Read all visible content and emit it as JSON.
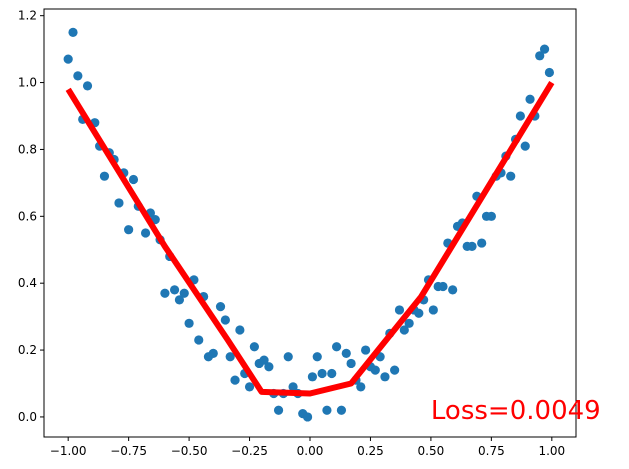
{
  "chart_data": {
    "type": "scatter",
    "title": "",
    "xlabel": "",
    "ylabel": "",
    "xlim": [
      -1.1,
      1.1
    ],
    "ylim": [
      -0.06,
      1.22
    ],
    "grid": false,
    "xticks": [
      -1.0,
      -0.75,
      -0.5,
      -0.25,
      0.0,
      0.25,
      0.5,
      0.75,
      1.0
    ],
    "xtick_labels": [
      "−1.00",
      "−0.75",
      "−0.50",
      "−0.25",
      "0.00",
      "0.25",
      "0.50",
      "0.75",
      "1.00"
    ],
    "yticks": [
      0.0,
      0.2,
      0.4,
      0.6,
      0.8,
      1.0,
      1.2
    ],
    "ytick_labels": [
      "0.0",
      "0.2",
      "0.4",
      "0.6",
      "0.8",
      "1.0",
      "1.2"
    ],
    "series": [
      {
        "kind": "scatter",
        "color": "#1f77b4",
        "points": [
          [
            -1.0,
            1.07
          ],
          [
            -0.98,
            1.15
          ],
          [
            -0.96,
            1.02
          ],
          [
            -0.94,
            0.89
          ],
          [
            -0.92,
            0.99
          ],
          [
            -0.89,
            0.88
          ],
          [
            -0.87,
            0.81
          ],
          [
            -0.85,
            0.72
          ],
          [
            -0.83,
            0.79
          ],
          [
            -0.81,
            0.77
          ],
          [
            -0.79,
            0.64
          ],
          [
            -0.77,
            0.73
          ],
          [
            -0.75,
            0.56
          ],
          [
            -0.73,
            0.71
          ],
          [
            -0.71,
            0.63
          ],
          [
            -0.68,
            0.55
          ],
          [
            -0.66,
            0.61
          ],
          [
            -0.64,
            0.59
          ],
          [
            -0.62,
            0.53
          ],
          [
            -0.6,
            0.37
          ],
          [
            -0.58,
            0.48
          ],
          [
            -0.56,
            0.38
          ],
          [
            -0.54,
            0.35
          ],
          [
            -0.52,
            0.37
          ],
          [
            -0.5,
            0.28
          ],
          [
            -0.48,
            0.41
          ],
          [
            -0.46,
            0.23
          ],
          [
            -0.44,
            0.36
          ],
          [
            -0.42,
            0.18
          ],
          [
            -0.4,
            0.19
          ],
          [
            -0.37,
            0.33
          ],
          [
            -0.35,
            0.29
          ],
          [
            -0.33,
            0.18
          ],
          [
            -0.31,
            0.11
          ],
          [
            -0.29,
            0.26
          ],
          [
            -0.27,
            0.13
          ],
          [
            -0.25,
            0.09
          ],
          [
            -0.23,
            0.21
          ],
          [
            -0.21,
            0.16
          ],
          [
            -0.19,
            0.17
          ],
          [
            -0.17,
            0.15
          ],
          [
            -0.15,
            0.07
          ],
          [
            -0.13,
            0.02
          ],
          [
            -0.11,
            0.07
          ],
          [
            -0.09,
            0.18
          ],
          [
            -0.07,
            0.09
          ],
          [
            -0.05,
            0.07
          ],
          [
            -0.03,
            0.01
          ],
          [
            -0.01,
            0.0
          ],
          [
            0.01,
            0.12
          ],
          [
            0.03,
            0.18
          ],
          [
            0.05,
            0.13
          ],
          [
            0.07,
            0.02
          ],
          [
            0.09,
            0.13
          ],
          [
            0.11,
            0.21
          ],
          [
            0.13,
            0.02
          ],
          [
            0.15,
            0.19
          ],
          [
            0.17,
            0.16
          ],
          [
            0.19,
            0.11
          ],
          [
            0.21,
            0.09
          ],
          [
            0.23,
            0.2
          ],
          [
            0.25,
            0.15
          ],
          [
            0.27,
            0.14
          ],
          [
            0.29,
            0.18
          ],
          [
            0.31,
            0.12
          ],
          [
            0.33,
            0.25
          ],
          [
            0.35,
            0.14
          ],
          [
            0.37,
            0.32
          ],
          [
            0.39,
            0.26
          ],
          [
            0.41,
            0.28
          ],
          [
            0.43,
            0.32
          ],
          [
            0.45,
            0.31
          ],
          [
            0.47,
            0.35
          ],
          [
            0.49,
            0.41
          ],
          [
            0.51,
            0.32
          ],
          [
            0.53,
            0.39
          ],
          [
            0.55,
            0.39
          ],
          [
            0.57,
            0.52
          ],
          [
            0.59,
            0.38
          ],
          [
            0.61,
            0.57
          ],
          [
            0.63,
            0.58
          ],
          [
            0.65,
            0.51
          ],
          [
            0.67,
            0.51
          ],
          [
            0.69,
            0.66
          ],
          [
            0.71,
            0.52
          ],
          [
            0.73,
            0.6
          ],
          [
            0.75,
            0.6
          ],
          [
            0.77,
            0.72
          ],
          [
            0.79,
            0.73
          ],
          [
            0.81,
            0.78
          ],
          [
            0.83,
            0.72
          ],
          [
            0.85,
            0.83
          ],
          [
            0.87,
            0.9
          ],
          [
            0.89,
            0.81
          ],
          [
            0.91,
            0.95
          ],
          [
            0.93,
            0.9
          ],
          [
            0.95,
            1.08
          ],
          [
            0.97,
            1.1
          ],
          [
            0.99,
            1.03
          ]
        ]
      },
      {
        "kind": "line",
        "color": "#ff0000",
        "points": [
          [
            -1.0,
            0.98
          ],
          [
            -0.6,
            0.51
          ],
          [
            -0.34,
            0.23
          ],
          [
            -0.2,
            0.075
          ],
          [
            0.0,
            0.07
          ],
          [
            0.17,
            0.1
          ],
          [
            0.46,
            0.36
          ],
          [
            1.0,
            1.0
          ]
        ]
      }
    ],
    "annotation": {
      "text": "Loss=0.0049",
      "x": 0.5,
      "y": 0.0,
      "color": "#ff0000"
    }
  }
}
